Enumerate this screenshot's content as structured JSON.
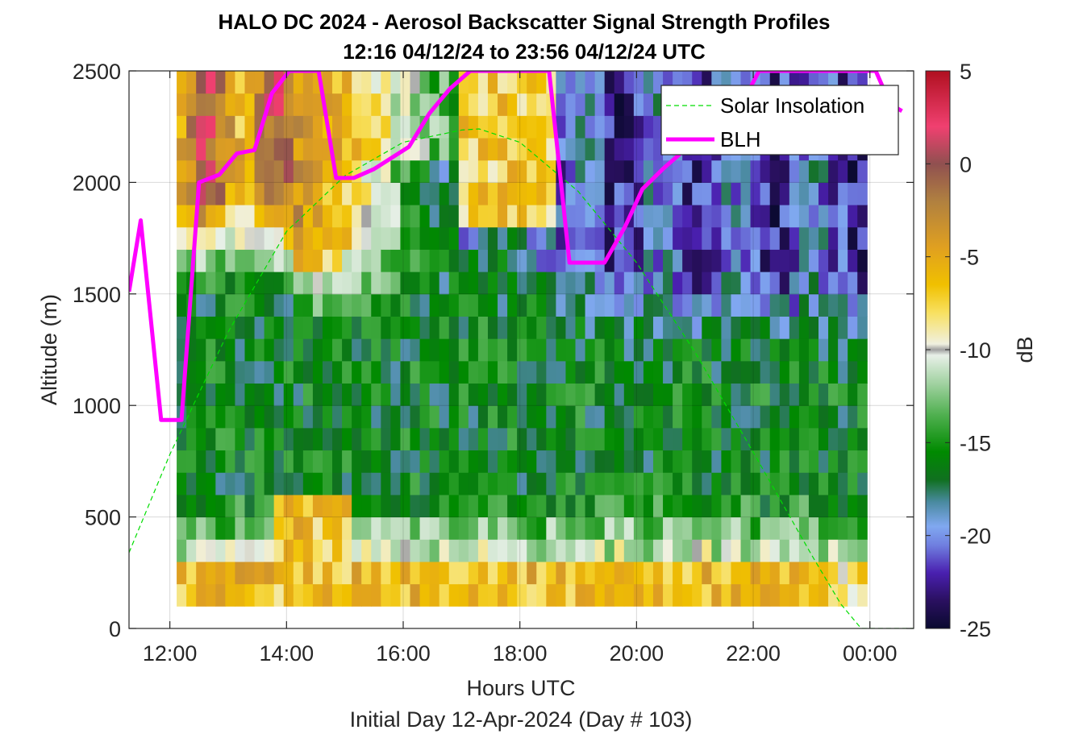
{
  "chart_data": {
    "type": "heatmap",
    "title_line1": "HALO DC 2024 - Aerosol Backscatter Signal Strength Profiles",
    "title_line2": "12:16 04/12/24 to 23:56 04/12/24  UTC",
    "xlabel": "Hours UTC",
    "xlabel2": "Initial Day 12-Apr-2024 (Day # 103)",
    "ylabel": "Altitude (m)",
    "colorbar_label": "dB",
    "xlim": [
      11.3,
      24.75
    ],
    "ylim": [
      0,
      2500
    ],
    "clim": [
      -25,
      5
    ],
    "grid": true,
    "x_ticks": [
      {
        "value": 12,
        "label": "12:00"
      },
      {
        "value": 14,
        "label": "14:00"
      },
      {
        "value": 16,
        "label": "16:00"
      },
      {
        "value": 18,
        "label": "18:00"
      },
      {
        "value": 20,
        "label": "20:00"
      },
      {
        "value": 22,
        "label": "22:00"
      },
      {
        "value": 24,
        "label": "00:00"
      }
    ],
    "y_ticks": [
      {
        "value": 0,
        "label": "0"
      },
      {
        "value": 500,
        "label": "500"
      },
      {
        "value": 1000,
        "label": "1000"
      },
      {
        "value": 1500,
        "label": "1500"
      },
      {
        "value": 2000,
        "label": "2000"
      },
      {
        "value": 2500,
        "label": "2500"
      }
    ],
    "colorbar_ticks": [
      {
        "value": 5,
        "label": "5"
      },
      {
        "value": 0,
        "label": "0"
      },
      {
        "value": -5,
        "label": "-5"
      },
      {
        "value": -10,
        "label": "-10"
      },
      {
        "value": -15,
        "label": "-15"
      },
      {
        "value": -20,
        "label": "-20"
      },
      {
        "value": -25,
        "label": "-25"
      }
    ],
    "colormap": [
      {
        "v": -25,
        "c": "#0a0a30"
      },
      {
        "v": -23.5,
        "c": "#2a1060"
      },
      {
        "v": -22,
        "c": "#4a20b0"
      },
      {
        "v": -20.5,
        "c": "#7080e0"
      },
      {
        "v": -19.5,
        "c": "#80a8f0"
      },
      {
        "v": -18.2,
        "c": "#4a8aa0"
      },
      {
        "v": -17,
        "c": "#107020"
      },
      {
        "v": -15.5,
        "c": "#008a00"
      },
      {
        "v": -13.5,
        "c": "#50b050"
      },
      {
        "v": -11.5,
        "c": "#b0d8b0"
      },
      {
        "v": -10.3,
        "c": "#e8f0e8"
      },
      {
        "v": -10,
        "c": "#a0a0a0"
      },
      {
        "v": -9.7,
        "c": "#f0f0e0"
      },
      {
        "v": -8,
        "c": "#f8e060"
      },
      {
        "v": -6.5,
        "c": "#f0c000"
      },
      {
        "v": -4.5,
        "c": "#e0a020"
      },
      {
        "v": -2,
        "c": "#b08040"
      },
      {
        "v": 0,
        "c": "#905050"
      },
      {
        "v": 2,
        "c": "#f04070"
      },
      {
        "v": 5,
        "c": "#b01020"
      }
    ],
    "heatmap": {
      "x_start": 12.2,
      "x_step": 0.1667,
      "y_levels": [
        150,
        250,
        350,
        450,
        550,
        650,
        750,
        850,
        950,
        1050,
        1150,
        1250,
        1350,
        1450,
        1550,
        1650,
        1750,
        1850,
        1950,
        2050,
        2150,
        2250,
        2350,
        2450
      ],
      "bottom": 100,
      "top": 2500,
      "n_times": 71
    },
    "series": [
      {
        "name": "Solar Insolation",
        "style": "dashed",
        "color": "#00dd00",
        "x": [
          11.3,
          12.0,
          13.0,
          14.0,
          15.0,
          16.0,
          17.0,
          17.3,
          18.0,
          19.0,
          20.0,
          21.0,
          22.0,
          23.0,
          23.5,
          23.85,
          24.75
        ],
        "y": [
          340,
          780,
          1330,
          1780,
          2030,
          2180,
          2235,
          2240,
          2180,
          1960,
          1640,
          1240,
          790,
          330,
          110,
          0,
          0
        ]
      },
      {
        "name": "BLH",
        "style": "solid",
        "color": "#ff00ff",
        "x": [
          11.3,
          11.5,
          11.85,
          12.2,
          12.5,
          12.85,
          13.15,
          13.45,
          13.75,
          14.05,
          14.35,
          14.55,
          14.85,
          15.15,
          15.5,
          15.8,
          16.1,
          16.45,
          16.8,
          17.15,
          17.5,
          17.8,
          18.15,
          18.5,
          18.85,
          19.45,
          19.8,
          20.1,
          20.45,
          20.8,
          21.1,
          21.5,
          21.8,
          22.1,
          22.5,
          22.85,
          23.2,
          23.5,
          23.85,
          24.1,
          24.35,
          24.55
        ],
        "y": [
          1510,
          1830,
          935,
          935,
          2000,
          2035,
          2130,
          2145,
          2400,
          2500,
          2500,
          2500,
          2020,
          2020,
          2060,
          2110,
          2160,
          2310,
          2420,
          2500,
          2500,
          2500,
          2500,
          2500,
          1640,
          1640,
          1800,
          1970,
          2060,
          2140,
          2180,
          2260,
          2350,
          2500,
          2500,
          2500,
          2500,
          2500,
          2500,
          2500,
          2350,
          2320
        ]
      }
    ],
    "legend": {
      "position": "top-right",
      "entries": [
        "Solar Insolation",
        "BLH"
      ]
    }
  }
}
